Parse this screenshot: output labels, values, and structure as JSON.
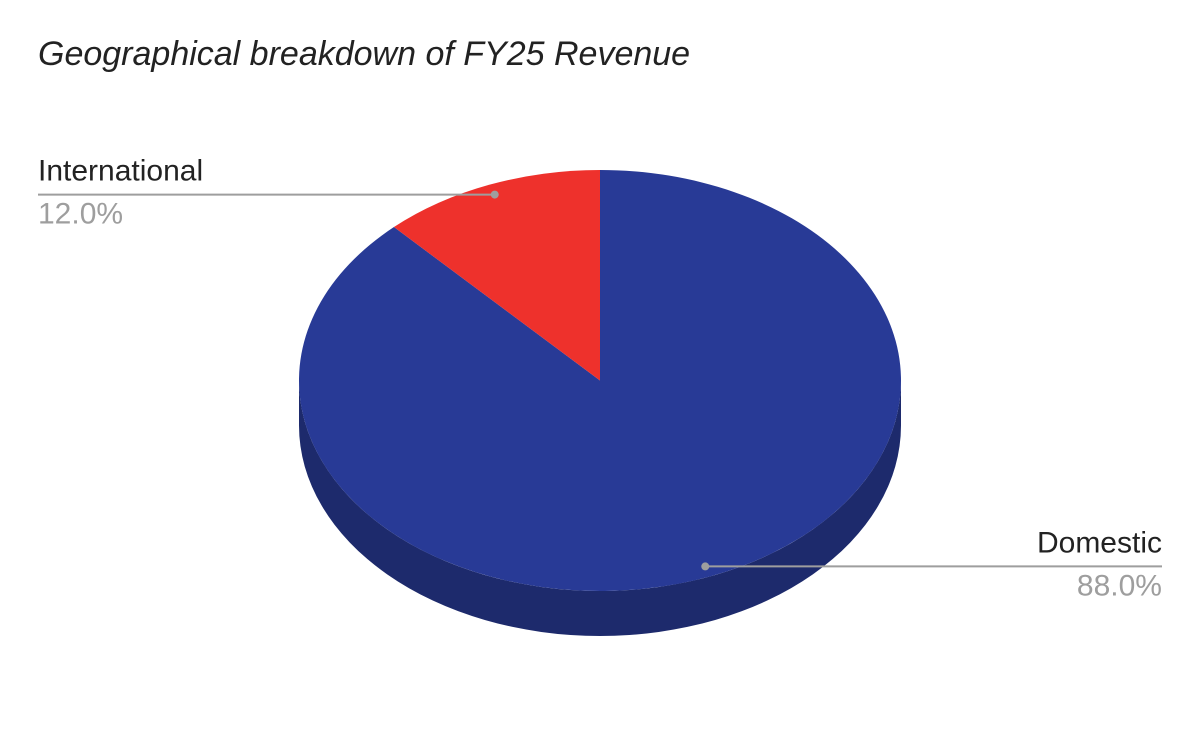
{
  "chart_data": {
    "type": "pie",
    "title": "Geographical breakdown of FY25 Revenue",
    "categories": [
      "Domestic",
      "International"
    ],
    "values": [
      88,
      12
    ],
    "value_labels": [
      "88.0%",
      "12.0%"
    ],
    "colors": [
      "#283a96",
      "#ee312c"
    ]
  }
}
